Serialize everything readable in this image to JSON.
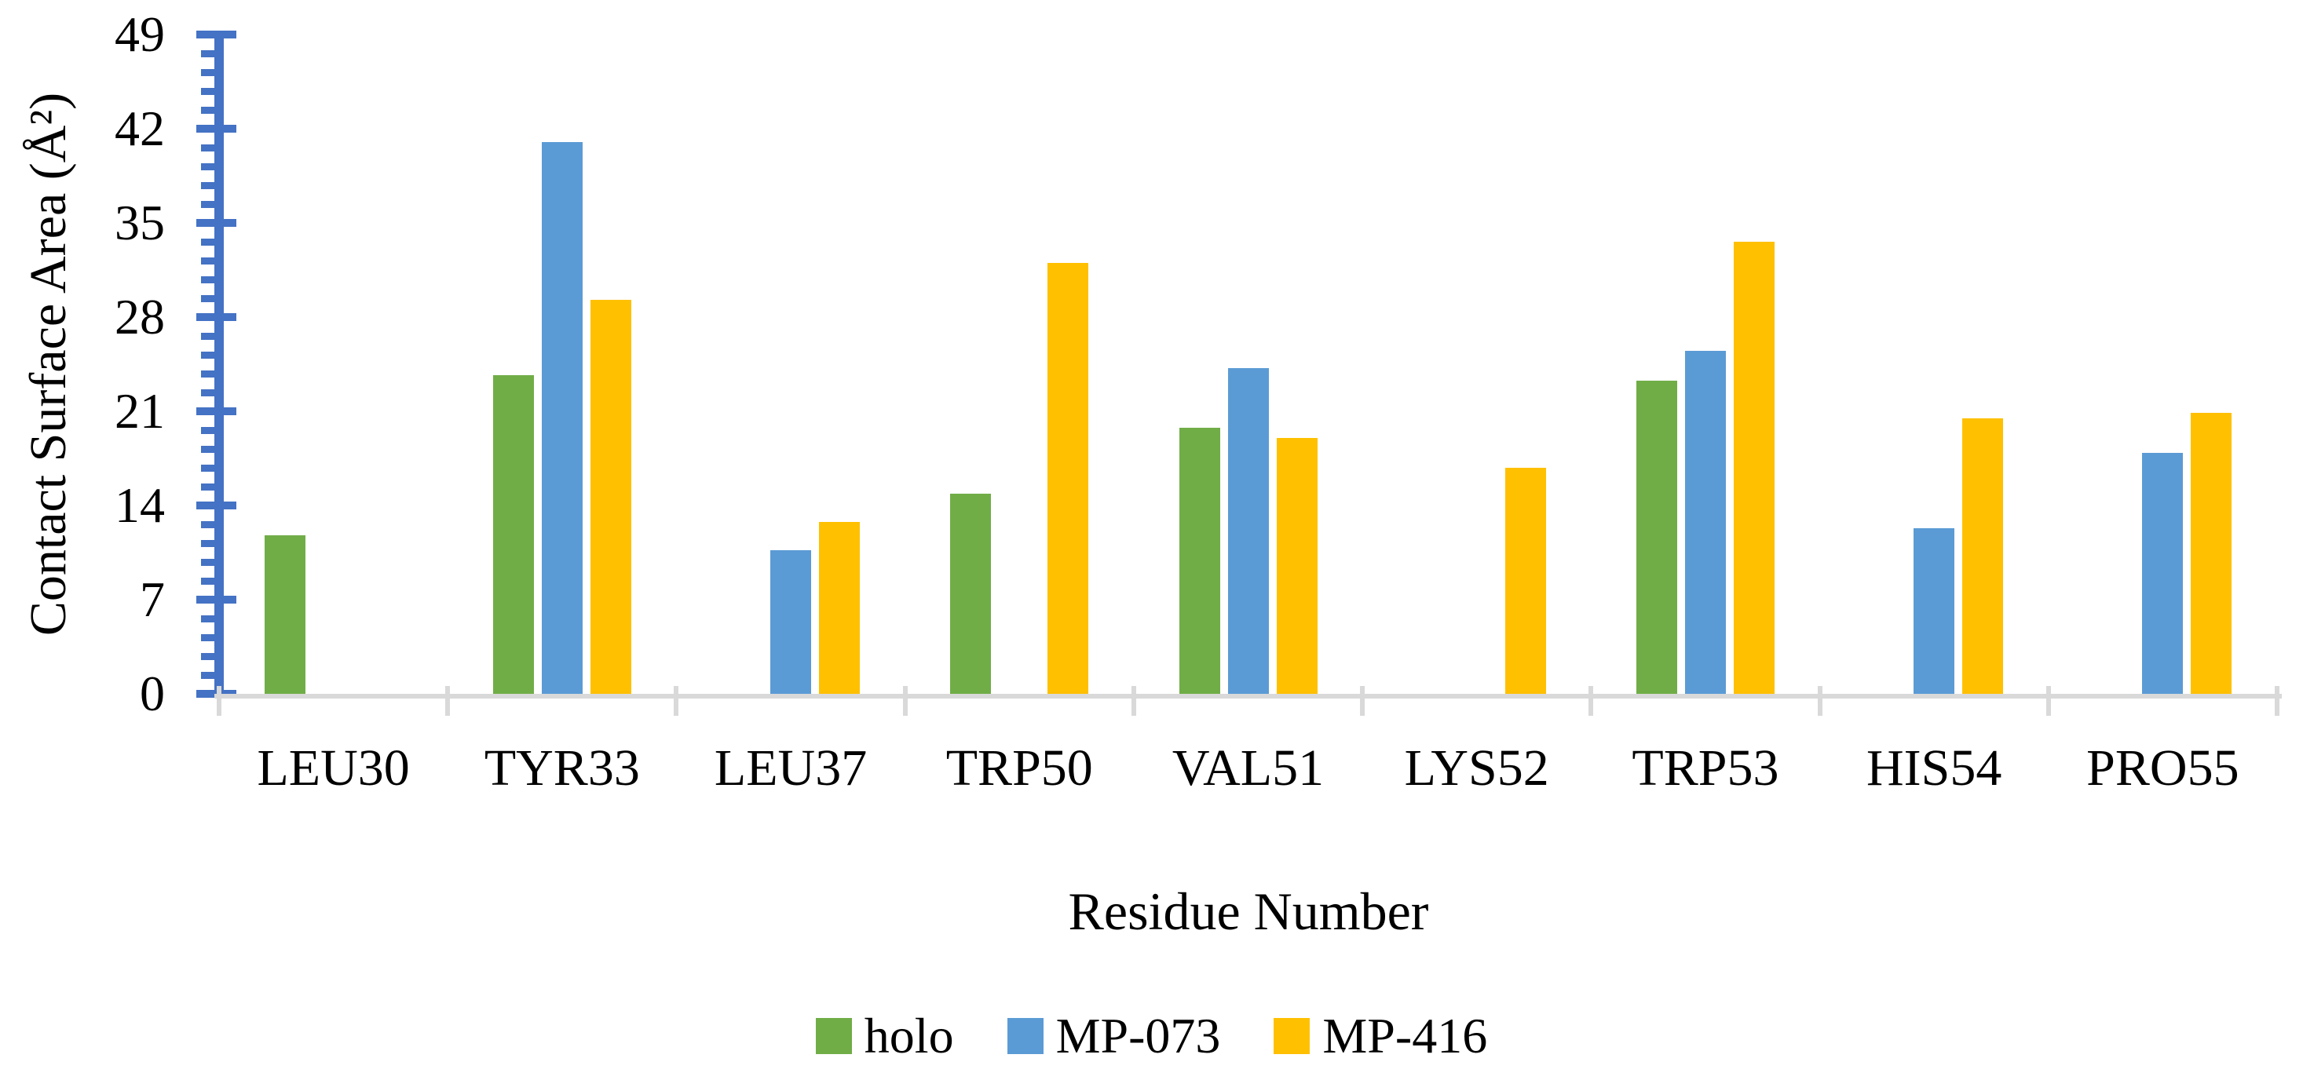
{
  "chart_data": {
    "type": "bar",
    "title": "",
    "xlabel": "Residue Number",
    "ylabel": "Contact Surface Area (Å²)",
    "categories": [
      "LEU30",
      "TYR33",
      "LEU37",
      "TRP50",
      "VAL51",
      "LYS52",
      "TRP53",
      "HIS54",
      "PRO55"
    ],
    "series": [
      {
        "name": "holo",
        "color": "#70AD47",
        "values": [
          11.8,
          23.7,
          0,
          14.9,
          19.8,
          0,
          23.3,
          0,
          0
        ]
      },
      {
        "name": "MP-073",
        "color": "#5B9BD5",
        "values": [
          0,
          41.0,
          10.7,
          0,
          24.2,
          0,
          25.5,
          12.3,
          17.9
        ]
      },
      {
        "name": "MP-416",
        "color": "#FFC000",
        "values": [
          0,
          29.3,
          12.8,
          32.0,
          19.0,
          16.8,
          33.6,
          20.5,
          20.9
        ]
      }
    ],
    "ylim": [
      0,
      49
    ],
    "ytick_major": 7,
    "ytick_minor": 1.4,
    "ytick_labels": [
      "0",
      "7",
      "14",
      "21",
      "28",
      "35",
      "42",
      "49"
    ],
    "grid": false,
    "legend_position": "bottom",
    "colors": {
      "y_axis": "#4472C4",
      "x_axis": "#D9D9D9",
      "text": "#000000",
      "background": "#FFFFFF"
    }
  }
}
